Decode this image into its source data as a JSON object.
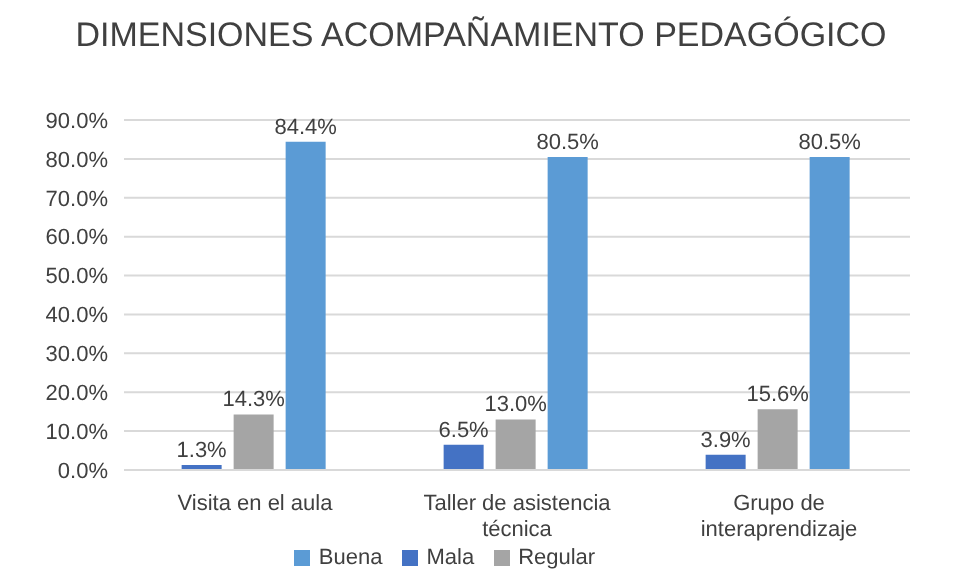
{
  "chart_data": {
    "type": "bar",
    "title": "DIMENSIONES ACOMPAÑAMIENTO PEDAGÓGICO",
    "categories": [
      "Visita en el aula",
      "Taller de asistencia técnica",
      "Grupo de interaprendizaje"
    ],
    "series": [
      {
        "name": "Mala",
        "color": "#4472c4",
        "values": [
          1.3,
          6.5,
          3.9
        ],
        "value_labels": [
          "1.3%",
          "6.5%",
          "3.9%"
        ]
      },
      {
        "name": "Regular",
        "color": "#a5a5a5",
        "values": [
          14.3,
          13.0,
          15.6
        ],
        "value_labels": [
          "14.3%",
          "13.0%",
          "15.6%"
        ]
      },
      {
        "name": "Buena",
        "color": "#5b9bd5",
        "values": [
          84.4,
          80.5,
          80.5
        ],
        "value_labels": [
          "84.4%",
          "80.5%",
          "80.5%"
        ]
      }
    ],
    "ylim": [
      0,
      90
    ],
    "yticks": [
      {
        "value": 0,
        "label": "0.0%"
      },
      {
        "value": 10,
        "label": "10.0%"
      },
      {
        "value": 20,
        "label": "20.0%"
      },
      {
        "value": 30,
        "label": "30.0%"
      },
      {
        "value": 40,
        "label": "40.0%"
      },
      {
        "value": 50,
        "label": "50.0%"
      },
      {
        "value": 60,
        "label": "60.0%"
      },
      {
        "value": 70,
        "label": "70.0%"
      },
      {
        "value": 80,
        "label": "80.0%"
      },
      {
        "value": 90,
        "label": "90.0%"
      }
    ],
    "grid": "y",
    "legend": "bottom"
  }
}
